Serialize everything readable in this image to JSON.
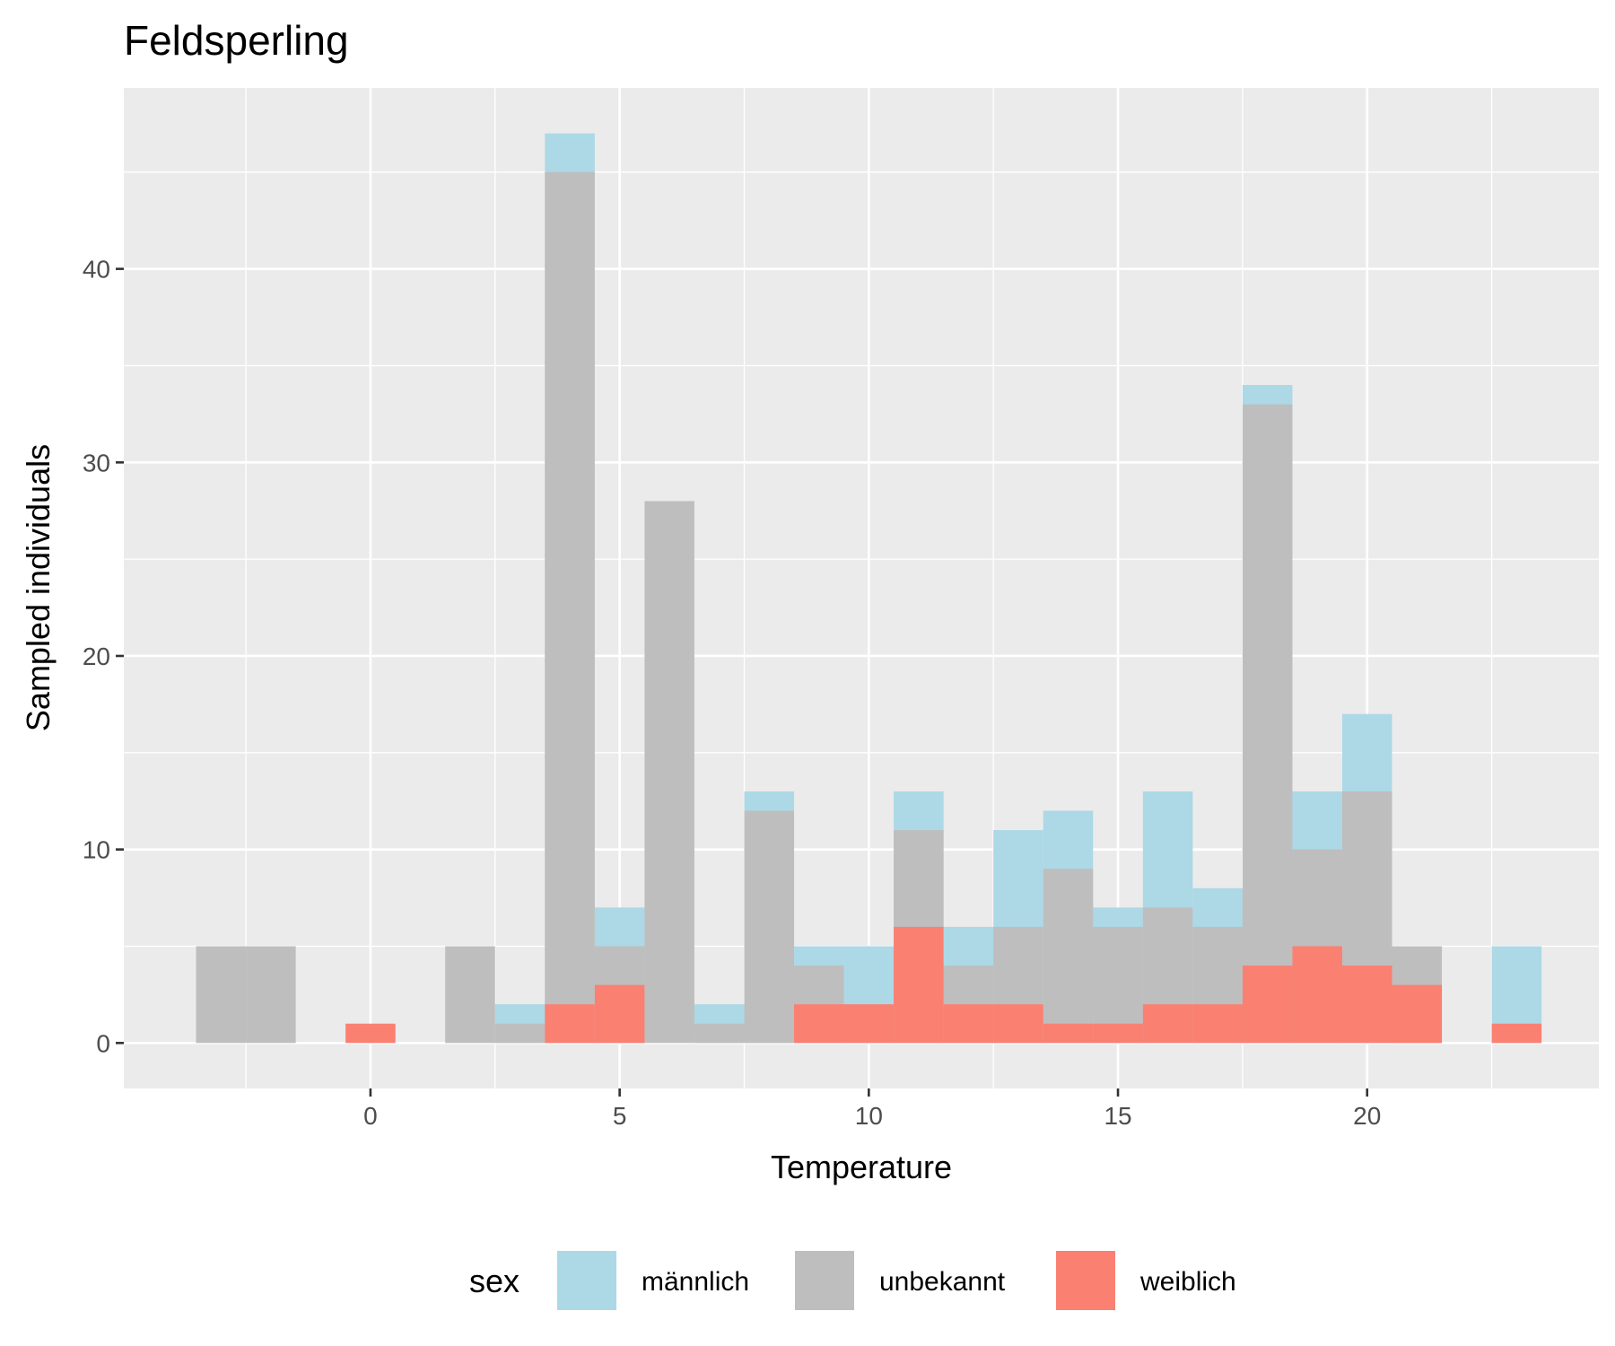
{
  "chart_data": {
    "type": "bar",
    "subtype": "overlapping histogram (bars drawn over each other, not stacked)",
    "title": "Feldsperling",
    "xlabel": "Temperature",
    "ylabel": "Sampled individuals",
    "xlim": [
      -4.95,
      24.65
    ],
    "ylim": [
      -2.35,
      49.35
    ],
    "x_ticks": [
      0,
      5,
      10,
      15,
      20
    ],
    "y_ticks": [
      0,
      10,
      20,
      30,
      40
    ],
    "bin_width": 1,
    "grid": true,
    "legend_title": "sex",
    "legend_position": "bottom",
    "x": [
      -3,
      -2,
      0,
      2,
      3,
      4,
      5,
      6,
      7,
      8,
      9,
      10,
      11,
      12,
      13,
      14,
      15,
      16,
      17,
      18,
      19,
      20,
      21,
      23
    ],
    "series": [
      {
        "name": "männlich",
        "color": "#add8e6",
        "values": [
          0,
          0,
          0,
          0,
          2,
          47,
          7,
          0,
          2,
          13,
          5,
          5,
          13,
          6,
          11,
          12,
          7,
          13,
          8,
          34,
          13,
          17,
          0,
          5
        ]
      },
      {
        "name": "unbekannt",
        "color": "#bebebe",
        "values": [
          5,
          5,
          0,
          5,
          1,
          45,
          5,
          28,
          1,
          12,
          4,
          2,
          11,
          4,
          6,
          9,
          6,
          7,
          6,
          33,
          10,
          13,
          5,
          0
        ]
      },
      {
        "name": "weiblich",
        "color": "#fa8072",
        "values": [
          0,
          0,
          1,
          0,
          0,
          2,
          3,
          0,
          0,
          0,
          2,
          2,
          6,
          2,
          2,
          1,
          1,
          2,
          2,
          4,
          5,
          4,
          3,
          1
        ]
      }
    ]
  },
  "style": {
    "panel_background": "#ebebeb",
    "grid_color": "#ffffff",
    "tick_label_color": "#4d4d4d",
    "tick_mark_color": "#333333"
  }
}
